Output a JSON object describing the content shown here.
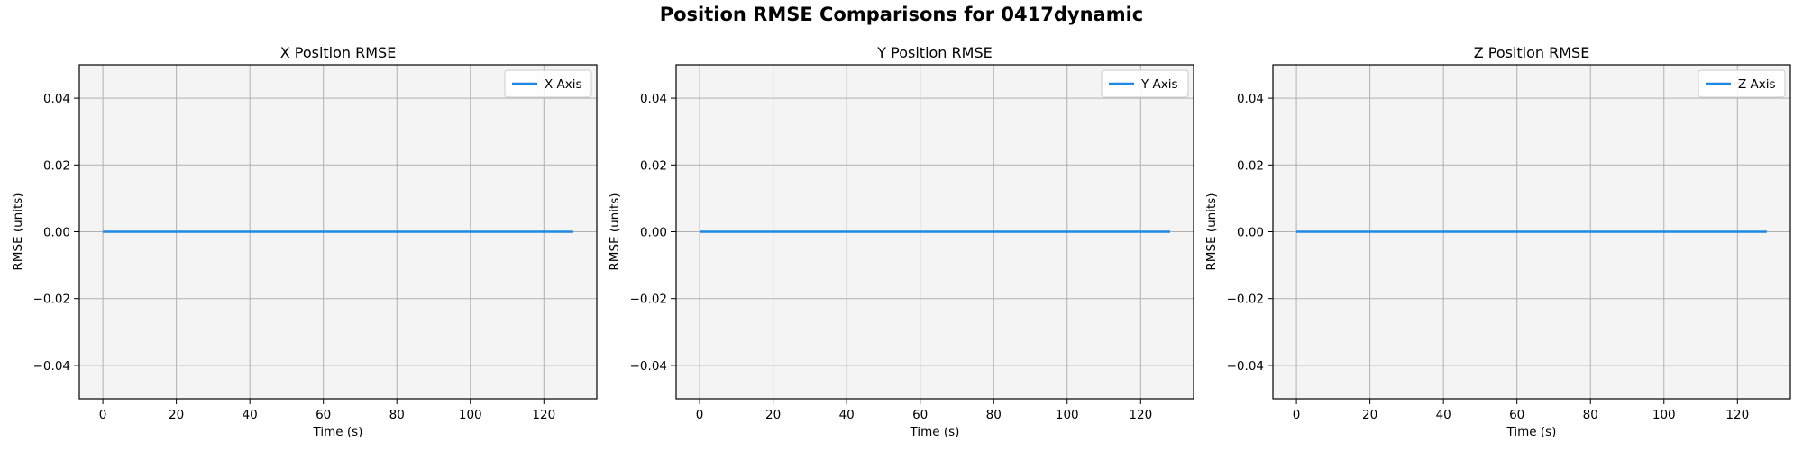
{
  "figure": {
    "title": "Position RMSE Comparisons for 0417dynamic",
    "line_color": "#1e88e5",
    "panel_background": "#f4f4f4",
    "grid_color": "#b0b0b0"
  },
  "chart_data": [
    {
      "type": "line",
      "title": "X Position RMSE",
      "xlabel": "Time (s)",
      "ylabel": "RMSE (units)",
      "xlim": [
        -6.4,
        134.4
      ],
      "ylim": [
        -0.05,
        0.05
      ],
      "xticks": [
        0,
        20,
        40,
        60,
        80,
        100,
        120
      ],
      "xtick_labels": [
        "0",
        "20",
        "40",
        "60",
        "80",
        "100",
        "120"
      ],
      "yticks": [
        -0.04,
        -0.02,
        0.0,
        0.02,
        0.04
      ],
      "ytick_labels": [
        "−0.04",
        "−0.02",
        "0.00",
        "0.02",
        "0.04"
      ],
      "grid": true,
      "legend_position": "top-right",
      "series": [
        {
          "name": "X Axis",
          "color": "#1e88e5",
          "x": [
            0,
            128
          ],
          "y": [
            0,
            0
          ]
        }
      ]
    },
    {
      "type": "line",
      "title": "Y Position RMSE",
      "xlabel": "Time (s)",
      "ylabel": "RMSE (units)",
      "xlim": [
        -6.4,
        134.4
      ],
      "ylim": [
        -0.05,
        0.05
      ],
      "xticks": [
        0,
        20,
        40,
        60,
        80,
        100,
        120
      ],
      "xtick_labels": [
        "0",
        "20",
        "40",
        "60",
        "80",
        "100",
        "120"
      ],
      "yticks": [
        -0.04,
        -0.02,
        0.0,
        0.02,
        0.04
      ],
      "ytick_labels": [
        "−0.04",
        "−0.02",
        "0.00",
        "0.02",
        "0.04"
      ],
      "grid": true,
      "legend_position": "top-right",
      "series": [
        {
          "name": "Y Axis",
          "color": "#1e88e5",
          "x": [
            0,
            128
          ],
          "y": [
            0,
            0
          ]
        }
      ]
    },
    {
      "type": "line",
      "title": "Z Position RMSE",
      "xlabel": "Time (s)",
      "ylabel": "RMSE (units)",
      "xlim": [
        -6.4,
        134.4
      ],
      "ylim": [
        -0.05,
        0.05
      ],
      "xticks": [
        0,
        20,
        40,
        60,
        80,
        100,
        120
      ],
      "xtick_labels": [
        "0",
        "20",
        "40",
        "60",
        "80",
        "100",
        "120"
      ],
      "yticks": [
        -0.04,
        -0.02,
        0.0,
        0.02,
        0.04
      ],
      "ytick_labels": [
        "−0.04",
        "−0.02",
        "0.00",
        "0.02",
        "0.04"
      ],
      "grid": true,
      "legend_position": "top-right",
      "series": [
        {
          "name": "Z Axis",
          "color": "#1e88e5",
          "x": [
            0,
            128
          ],
          "y": [
            0,
            0
          ]
        }
      ]
    }
  ]
}
